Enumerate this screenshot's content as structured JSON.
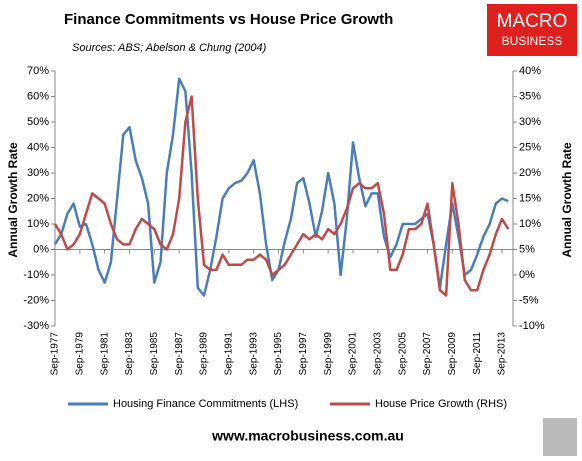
{
  "logo": {
    "line1": "MACRO",
    "line2": "BUSINESS"
  },
  "footer": "www.macrobusiness.com.au",
  "chart_data": {
    "type": "line",
    "title": "Finance Commitments vs House Price Growth",
    "subtitle": "Sources: ABS; Abelson & Chung (2004)",
    "y_label": "Annual Growth Rate",
    "y2_label": "Annual Growth Rate",
    "categories": [
      "Sep-1977",
      null,
      null,
      null,
      "Sep-1979",
      null,
      null,
      null,
      "Sep-1981",
      null,
      null,
      null,
      "Sep-1983",
      null,
      null,
      null,
      "Sep-1985",
      null,
      null,
      null,
      "Sep-1987",
      null,
      null,
      null,
      "Sep-1989",
      null,
      null,
      null,
      "Sep-1991",
      null,
      null,
      null,
      "Sep-1993",
      null,
      null,
      null,
      "Sep-1995",
      null,
      null,
      null,
      "Sep-1997",
      null,
      null,
      null,
      "Sep-1999",
      null,
      null,
      null,
      "Sep-2001",
      null,
      null,
      null,
      "Sep-2003",
      null,
      null,
      null,
      "Sep-2005",
      null,
      null,
      null,
      "Sep-2007",
      null,
      null,
      null,
      "Sep-2009",
      null,
      null,
      null,
      "Sep-2011",
      null,
      null,
      null,
      "Sep-2013",
      null
    ],
    "ylim": [
      -30,
      70
    ],
    "yticks": [
      {
        "value": -30,
        "label": "-30%"
      },
      {
        "value": -20,
        "label": "-20%"
      },
      {
        "value": -10,
        "label": "-10%"
      },
      {
        "value": 0,
        "label": "0%"
      },
      {
        "value": 10,
        "label": "10%"
      },
      {
        "value": 20,
        "label": "20%"
      },
      {
        "value": 30,
        "label": "30%"
      },
      {
        "value": 40,
        "label": "40%"
      },
      {
        "value": 50,
        "label": "50%"
      },
      {
        "value": 60,
        "label": "60%"
      },
      {
        "value": 70,
        "label": "70%"
      }
    ],
    "y2lim": [
      -10,
      40
    ],
    "y2ticks": [
      {
        "value": -10,
        "label": "-10%"
      },
      {
        "value": -5,
        "label": "-5%"
      },
      {
        "value": 0,
        "label": "0%"
      },
      {
        "value": 5,
        "label": "5%"
      },
      {
        "value": 10,
        "label": "10%"
      },
      {
        "value": 15,
        "label": "15%"
      },
      {
        "value": 20,
        "label": "20%"
      },
      {
        "value": 25,
        "label": "25%"
      },
      {
        "value": 30,
        "label": "30%"
      },
      {
        "value": 35,
        "label": "35%"
      },
      {
        "value": 40,
        "label": "40%"
      }
    ],
    "series": [
      {
        "name": "Housing Finance Commitments (LHS)",
        "color": "#4a7ebb",
        "axis": "y",
        "values": [
          2,
          6,
          14,
          18,
          9,
          10,
          2,
          -8,
          -13,
          -5,
          20,
          45,
          48,
          35,
          28,
          18,
          -13,
          -5,
          30,
          45,
          67,
          62,
          30,
          -15,
          -18,
          -8,
          5,
          20,
          24,
          26,
          27,
          30,
          35,
          22,
          2,
          -12,
          -8,
          3,
          12,
          26,
          28,
          18,
          5,
          15,
          30,
          18,
          -10,
          12,
          42,
          28,
          17,
          22,
          22,
          5,
          -3,
          2,
          10,
          10,
          10,
          12,
          14,
          2,
          -15,
          2,
          18,
          5,
          -10,
          -8,
          -2,
          5,
          10,
          18,
          20,
          19
        ]
      },
      {
        "name": "House Price Growth (RHS)",
        "color": "#be4b48",
        "axis": "y2",
        "values": [
          10,
          8,
          5,
          6,
          8,
          12,
          16,
          15,
          14,
          10,
          7,
          6,
          6,
          9,
          11,
          10,
          9,
          6,
          5,
          8,
          15,
          30,
          35,
          15,
          2,
          1,
          1,
          4,
          2,
          2,
          2,
          3,
          3,
          4,
          3,
          0,
          1,
          2,
          4,
          6,
          8,
          7,
          8,
          7,
          9,
          8,
          10,
          13,
          17,
          18,
          17,
          17,
          18,
          12,
          1,
          1,
          4,
          9,
          9,
          10,
          14,
          6,
          -3,
          -4,
          18,
          10,
          -1,
          -3,
          -3,
          1,
          4,
          8,
          11,
          9
        ]
      }
    ]
  }
}
